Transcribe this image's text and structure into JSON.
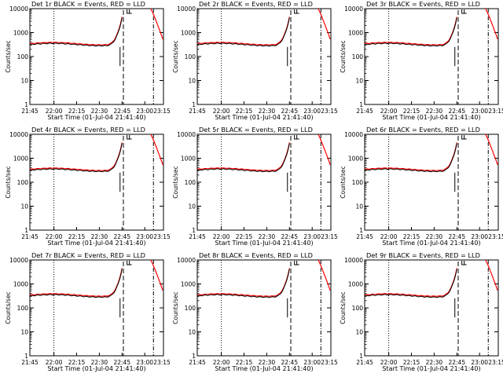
{
  "colors": {
    "events": "#000000",
    "lld": "#ff0000",
    "background": "#ffffff"
  },
  "chart_data": [
    {
      "type": "line",
      "title": "Det 1r BLACK = Events, RED = LLD",
      "xlabel": "Start Time (01-Jul-04 21:41:40)",
      "ylabel": "Counts/sec",
      "x_tick_labels": [
        "21:45",
        "22:00",
        "22:15",
        "22:30",
        "22:45",
        "23:00",
        "23:15"
      ],
      "y_tick_labels": [
        "1",
        "10",
        "100",
        "1000",
        "10000"
      ],
      "ylim": [
        1,
        10000
      ],
      "yscale": "log",
      "series": [
        {
          "name": "Events",
          "color": "#000000"
        },
        {
          "name": "LLD",
          "color": "#ff0000"
        }
      ]
    },
    {
      "type": "line",
      "title": "Det 2r BLACK = Events, RED = LLD",
      "xlabel": "Start Time (01-Jul-04 21:41:40)",
      "ylabel": "Counts/sec",
      "x_tick_labels": [
        "21:45",
        "22:00",
        "22:15",
        "22:30",
        "22:45",
        "23:00",
        "23:15"
      ],
      "y_tick_labels": [
        "1",
        "10",
        "100",
        "1000",
        "10000"
      ],
      "ylim": [
        1,
        10000
      ],
      "yscale": "log",
      "series": [
        {
          "name": "Events",
          "color": "#000000"
        },
        {
          "name": "LLD",
          "color": "#ff0000"
        }
      ]
    },
    {
      "type": "line",
      "title": "Det 3r BLACK = Events, RED = LLD",
      "xlabel": "Start Time (01-Jul-04 21:41:40)",
      "ylabel": "Counts/sec",
      "x_tick_labels": [
        "21:45",
        "22:00",
        "22:15",
        "22:30",
        "22:45",
        "23:00",
        "23:15"
      ],
      "y_tick_labels": [
        "1",
        "10",
        "100",
        "1000",
        "10000"
      ],
      "ylim": [
        1,
        10000
      ],
      "yscale": "log",
      "series": [
        {
          "name": "Events",
          "color": "#000000"
        },
        {
          "name": "LLD",
          "color": "#ff0000"
        }
      ]
    },
    {
      "type": "line",
      "title": "Det 4r BLACK = Events, RED = LLD",
      "xlabel": "Start Time (01-Jul-04 21:41:40)",
      "ylabel": "Counts/sec",
      "x_tick_labels": [
        "21:45",
        "22:00",
        "22:15",
        "22:30",
        "22:45",
        "23:00",
        "23:15"
      ],
      "y_tick_labels": [
        "1",
        "10",
        "100",
        "1000",
        "10000"
      ],
      "ylim": [
        1,
        10000
      ],
      "yscale": "log",
      "series": [
        {
          "name": "Events",
          "color": "#000000"
        },
        {
          "name": "LLD",
          "color": "#ff0000"
        }
      ]
    },
    {
      "type": "line",
      "title": "Det 5r BLACK = Events, RED = LLD",
      "xlabel": "Start Time (01-Jul-04 21:41:40)",
      "ylabel": "Counts/sec",
      "x_tick_labels": [
        "21:45",
        "22:00",
        "22:15",
        "22:30",
        "22:45",
        "23:00",
        "23:15"
      ],
      "y_tick_labels": [
        "1",
        "10",
        "100",
        "1000",
        "10000"
      ],
      "ylim": [
        1,
        10000
      ],
      "yscale": "log",
      "series": [
        {
          "name": "Events",
          "color": "#000000"
        },
        {
          "name": "LLD",
          "color": "#ff0000"
        }
      ]
    },
    {
      "type": "line",
      "title": "Det 6r BLACK = Events, RED = LLD",
      "xlabel": "Start Time (01-Jul-04 21:41:40)",
      "ylabel": "Counts/sec",
      "x_tick_labels": [
        "21:45",
        "22:00",
        "22:15",
        "22:30",
        "22:45",
        "23:00",
        "23:15"
      ],
      "y_tick_labels": [
        "1",
        "10",
        "100",
        "1000",
        "10000"
      ],
      "ylim": [
        1,
        10000
      ],
      "yscale": "log",
      "series": [
        {
          "name": "Events",
          "color": "#000000"
        },
        {
          "name": "LLD",
          "color": "#ff0000"
        }
      ]
    },
    {
      "type": "line",
      "title": "Det 7r BLACK = Events, RED = LLD",
      "xlabel": "Start Time (01-Jul-04 21:41:40)",
      "ylabel": "Counts/sec",
      "x_tick_labels": [
        "21:45",
        "22:00",
        "22:15",
        "22:30",
        "22:45",
        "23:00",
        "23:15"
      ],
      "y_tick_labels": [
        "1",
        "10",
        "100",
        "1000",
        "10000"
      ],
      "ylim": [
        1,
        10000
      ],
      "yscale": "log",
      "series": [
        {
          "name": "Events",
          "color": "#000000"
        },
        {
          "name": "LLD",
          "color": "#ff0000"
        }
      ]
    },
    {
      "type": "line",
      "title": "Det 8r BLACK = Events, RED = LLD",
      "xlabel": "Start Time (01-Jul-04 21:41:40)",
      "ylabel": "Counts/sec",
      "x_tick_labels": [
        "21:45",
        "22:00",
        "22:15",
        "22:30",
        "22:45",
        "23:00",
        "23:15"
      ],
      "y_tick_labels": [
        "1",
        "10",
        "100",
        "1000",
        "10000"
      ],
      "ylim": [
        1,
        10000
      ],
      "yscale": "log",
      "series": [
        {
          "name": "Events",
          "color": "#000000"
        },
        {
          "name": "LLD",
          "color": "#ff0000"
        }
      ]
    },
    {
      "type": "line",
      "title": "Det 9r BLACK = Events, RED = LLD",
      "xlabel": "Start Time (01-Jul-04 21:41:40)",
      "ylabel": "Counts/sec",
      "x_tick_labels": [
        "21:45",
        "22:00",
        "22:15",
        "22:30",
        "22:45",
        "23:00",
        "23:15"
      ],
      "y_tick_labels": [
        "1",
        "10",
        "100",
        "1000",
        "10000"
      ],
      "ylim": [
        1,
        10000
      ],
      "yscale": "log",
      "series": [
        {
          "name": "Events",
          "color": "#000000"
        },
        {
          "name": "LLD",
          "color": "#ff0000"
        }
      ]
    }
  ]
}
